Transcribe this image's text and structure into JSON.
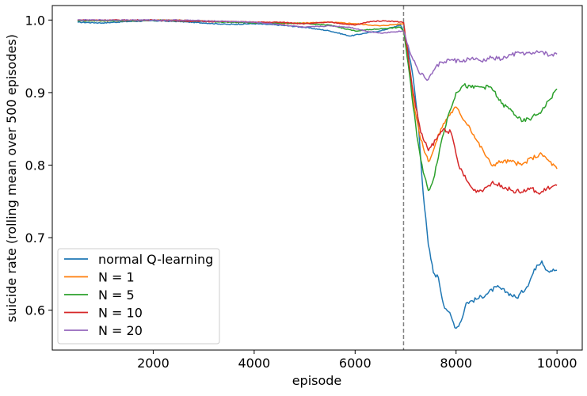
{
  "chart_data": {
    "type": "line",
    "xlabel": "episode",
    "ylabel": "suicide rate (rolling mean over 500 episodes)",
    "xlim": [
      0,
      10500
    ],
    "ylim": [
      0.545,
      1.02
    ],
    "xticks": [
      2000,
      4000,
      6000,
      8000,
      10000
    ],
    "xtick_labels": [
      "2000",
      "4000",
      "6000",
      "8000",
      "10000"
    ],
    "yticks": [
      0.6,
      0.7,
      0.8,
      0.9,
      1.0
    ],
    "ytick_labels": [
      "0.6",
      "0.7",
      "0.8",
      "0.9",
      "1.0"
    ],
    "vline": {
      "x": 6960,
      "style": "dashed",
      "color": "#808080"
    },
    "legend_position": "lower-left",
    "grid": false,
    "series": [
      {
        "name": "normal Q-learning",
        "color": "#1f77b4",
        "points": [
          [
            500,
            0.997
          ],
          [
            1000,
            0.996
          ],
          [
            1500,
            0.998
          ],
          [
            2000,
            0.999
          ],
          [
            2500,
            0.998
          ],
          [
            3000,
            0.996
          ],
          [
            3500,
            0.994
          ],
          [
            4000,
            0.995
          ],
          [
            4500,
            0.993
          ],
          [
            5000,
            0.99
          ],
          [
            5500,
            0.985
          ],
          [
            5900,
            0.978
          ],
          [
            6200,
            0.982
          ],
          [
            6500,
            0.985
          ],
          [
            6900,
            0.993
          ],
          [
            6960,
            0.985
          ],
          [
            7050,
            0.96
          ],
          [
            7150,
            0.92
          ],
          [
            7250,
            0.86
          ],
          [
            7350,
            0.76
          ],
          [
            7450,
            0.69
          ],
          [
            7550,
            0.652
          ],
          [
            7650,
            0.645
          ],
          [
            7750,
            0.608
          ],
          [
            7850,
            0.598
          ],
          [
            8000,
            0.575
          ],
          [
            8100,
            0.585
          ],
          [
            8200,
            0.61
          ],
          [
            8400,
            0.615
          ],
          [
            8600,
            0.622
          ],
          [
            8800,
            0.632
          ],
          [
            9000,
            0.625
          ],
          [
            9200,
            0.617
          ],
          [
            9400,
            0.632
          ],
          [
            9600,
            0.662
          ],
          [
            9700,
            0.668
          ],
          [
            9800,
            0.655
          ],
          [
            10000,
            0.655
          ]
        ]
      },
      {
        "name": "N = 1",
        "color": "#ff7f0e",
        "points": [
          [
            500,
            1.0
          ],
          [
            1000,
            0.999
          ],
          [
            1500,
            0.999
          ],
          [
            2000,
            1.0
          ],
          [
            2500,
            1.0
          ],
          [
            3000,
            0.999
          ],
          [
            3500,
            0.998
          ],
          [
            4000,
            0.997
          ],
          [
            4500,
            0.995
          ],
          [
            5000,
            0.996
          ],
          [
            5500,
            0.997
          ],
          [
            6000,
            0.995
          ],
          [
            6500,
            0.992
          ],
          [
            6960,
            0.995
          ],
          [
            7050,
            0.95
          ],
          [
            7150,
            0.89
          ],
          [
            7300,
            0.835
          ],
          [
            7450,
            0.805
          ],
          [
            7550,
            0.82
          ],
          [
            7700,
            0.85
          ],
          [
            7850,
            0.868
          ],
          [
            8000,
            0.88
          ],
          [
            8100,
            0.868
          ],
          [
            8250,
            0.855
          ],
          [
            8400,
            0.835
          ],
          [
            8550,
            0.818
          ],
          [
            8700,
            0.8
          ],
          [
            8900,
            0.805
          ],
          [
            9100,
            0.805
          ],
          [
            9300,
            0.8
          ],
          [
            9500,
            0.81
          ],
          [
            9700,
            0.815
          ],
          [
            9850,
            0.805
          ],
          [
            10000,
            0.795
          ]
        ]
      },
      {
        "name": "N = 5",
        "color": "#2ca02c",
        "points": [
          [
            500,
            0.999
          ],
          [
            1000,
            0.999
          ],
          [
            1500,
            0.999
          ],
          [
            2000,
            1.0
          ],
          [
            2500,
            0.999
          ],
          [
            3000,
            0.998
          ],
          [
            3500,
            0.997
          ],
          [
            4000,
            0.996
          ],
          [
            4500,
            0.996
          ],
          [
            5000,
            0.995
          ],
          [
            5500,
            0.993
          ],
          [
            6000,
            0.985
          ],
          [
            6500,
            0.988
          ],
          [
            6900,
            0.99
          ],
          [
            6960,
            0.985
          ],
          [
            7050,
            0.94
          ],
          [
            7150,
            0.88
          ],
          [
            7250,
            0.83
          ],
          [
            7350,
            0.79
          ],
          [
            7450,
            0.765
          ],
          [
            7550,
            0.78
          ],
          [
            7700,
            0.83
          ],
          [
            7850,
            0.87
          ],
          [
            8000,
            0.9
          ],
          [
            8150,
            0.91
          ],
          [
            8300,
            0.907
          ],
          [
            8500,
            0.908
          ],
          [
            8700,
            0.907
          ],
          [
            8900,
            0.885
          ],
          [
            9100,
            0.875
          ],
          [
            9300,
            0.86
          ],
          [
            9500,
            0.865
          ],
          [
            9700,
            0.875
          ],
          [
            9850,
            0.89
          ],
          [
            10000,
            0.905
          ]
        ]
      },
      {
        "name": "N = 10",
        "color": "#d62728",
        "points": [
          [
            500,
            1.0
          ],
          [
            1000,
            1.0
          ],
          [
            1500,
            1.0
          ],
          [
            2000,
            1.0
          ],
          [
            2500,
            0.999
          ],
          [
            3000,
            0.998
          ],
          [
            3500,
            0.998
          ],
          [
            4000,
            0.997
          ],
          [
            4500,
            0.997
          ],
          [
            5000,
            0.995
          ],
          [
            5500,
            0.997
          ],
          [
            6000,
            0.993
          ],
          [
            6300,
            0.998
          ],
          [
            6600,
            0.999
          ],
          [
            6960,
            0.997
          ],
          [
            7050,
            0.95
          ],
          [
            7150,
            0.9
          ],
          [
            7300,
            0.845
          ],
          [
            7450,
            0.82
          ],
          [
            7600,
            0.835
          ],
          [
            7750,
            0.85
          ],
          [
            7900,
            0.845
          ],
          [
            8050,
            0.8
          ],
          [
            8200,
            0.78
          ],
          [
            8350,
            0.765
          ],
          [
            8500,
            0.765
          ],
          [
            8700,
            0.775
          ],
          [
            8900,
            0.772
          ],
          [
            9100,
            0.765
          ],
          [
            9300,
            0.763
          ],
          [
            9500,
            0.768
          ],
          [
            9650,
            0.76
          ],
          [
            9800,
            0.768
          ],
          [
            10000,
            0.772
          ]
        ]
      },
      {
        "name": "N = 20",
        "color": "#9467bd",
        "points": [
          [
            500,
            1.0
          ],
          [
            1000,
            1.0
          ],
          [
            1500,
            1.0
          ],
          [
            2000,
            1.0
          ],
          [
            2500,
            1.0
          ],
          [
            3000,
            0.999
          ],
          [
            3500,
            0.998
          ],
          [
            4000,
            0.997
          ],
          [
            4500,
            0.994
          ],
          [
            5000,
            0.99
          ],
          [
            5500,
            0.992
          ],
          [
            5900,
            0.99
          ],
          [
            6200,
            0.985
          ],
          [
            6500,
            0.982
          ],
          [
            6960,
            0.985
          ],
          [
            7050,
            0.965
          ],
          [
            7150,
            0.945
          ],
          [
            7300,
            0.925
          ],
          [
            7450,
            0.918
          ],
          [
            7550,
            0.93
          ],
          [
            7700,
            0.942
          ],
          [
            7900,
            0.945
          ],
          [
            8100,
            0.943
          ],
          [
            8300,
            0.947
          ],
          [
            8500,
            0.943
          ],
          [
            8700,
            0.948
          ],
          [
            8900,
            0.946
          ],
          [
            9100,
            0.952
          ],
          [
            9300,
            0.955
          ],
          [
            9500,
            0.953
          ],
          [
            9700,
            0.957
          ],
          [
            9850,
            0.951
          ],
          [
            10000,
            0.953
          ]
        ]
      }
    ]
  }
}
